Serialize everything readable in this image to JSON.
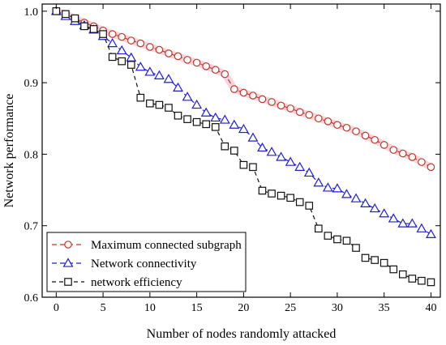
{
  "chart_data": {
    "type": "line",
    "title": "",
    "xlabel": "Number of nodes randomly attacked",
    "ylabel": "Network performance",
    "xlim": [
      -1.5,
      41
    ],
    "ylim": [
      0.6,
      1.01
    ],
    "x_ticks": [
      0,
      5,
      10,
      15,
      20,
      25,
      30,
      35,
      40
    ],
    "y_ticks": [
      0.6,
      0.7,
      0.8,
      0.9,
      1.0
    ],
    "x_tick_labels": [
      "0",
      "5",
      "10",
      "15",
      "20",
      "25",
      "30",
      "35",
      "40"
    ],
    "y_tick_labels": [
      "0.6",
      "0.7",
      "0.8",
      "0.9",
      "1.0"
    ],
    "grid": false,
    "legend_position": "bottom-left",
    "x": [
      0,
      1,
      2,
      3,
      4,
      5,
      6,
      7,
      8,
      9,
      10,
      11,
      12,
      13,
      14,
      15,
      16,
      17,
      18,
      19,
      20,
      21,
      22,
      23,
      24,
      25,
      26,
      27,
      28,
      29,
      30,
      31,
      32,
      33,
      34,
      35,
      36,
      37,
      38,
      39,
      40
    ],
    "series": [
      {
        "name": "Maximum connected subgraph",
        "color": "#c0392b",
        "glow": "#f2b6c6",
        "marker": "circle",
        "dash": "6,4",
        "values": [
          1.0,
          0.996,
          0.99,
          0.984,
          0.979,
          0.973,
          0.968,
          0.964,
          0.959,
          0.955,
          0.95,
          0.946,
          0.941,
          0.937,
          0.932,
          0.928,
          0.923,
          0.918,
          0.912,
          0.891,
          0.886,
          0.882,
          0.877,
          0.873,
          0.868,
          0.864,
          0.859,
          0.855,
          0.85,
          0.846,
          0.841,
          0.837,
          0.832,
          0.826,
          0.82,
          0.813,
          0.806,
          0.801,
          0.796,
          0.789,
          0.782
        ]
      },
      {
        "name": "Network connectivity",
        "color": "#1f1fcf",
        "marker": "triangle",
        "dash": "6,4",
        "values": [
          1.0,
          0.993,
          0.986,
          0.98,
          0.974,
          0.965,
          0.955,
          0.945,
          0.935,
          0.922,
          0.915,
          0.91,
          0.905,
          0.893,
          0.88,
          0.869,
          0.858,
          0.851,
          0.848,
          0.841,
          0.835,
          0.823,
          0.809,
          0.803,
          0.796,
          0.789,
          0.782,
          0.774,
          0.76,
          0.753,
          0.752,
          0.744,
          0.738,
          0.731,
          0.724,
          0.717,
          0.71,
          0.703,
          0.703,
          0.696,
          0.688
        ]
      },
      {
        "name": "network efficiency",
        "color": "#111111",
        "marker": "square",
        "dash": "5,4",
        "values": [
          1.0,
          0.996,
          0.99,
          0.979,
          0.975,
          0.968,
          0.936,
          0.93,
          0.925,
          0.879,
          0.871,
          0.869,
          0.865,
          0.854,
          0.849,
          0.845,
          0.842,
          0.838,
          0.811,
          0.805,
          0.785,
          0.782,
          0.749,
          0.745,
          0.742,
          0.739,
          0.733,
          0.728,
          0.696,
          0.686,
          0.681,
          0.679,
          0.669,
          0.655,
          0.652,
          0.648,
          0.639,
          0.632,
          0.626,
          0.623,
          0.621
        ]
      }
    ]
  }
}
